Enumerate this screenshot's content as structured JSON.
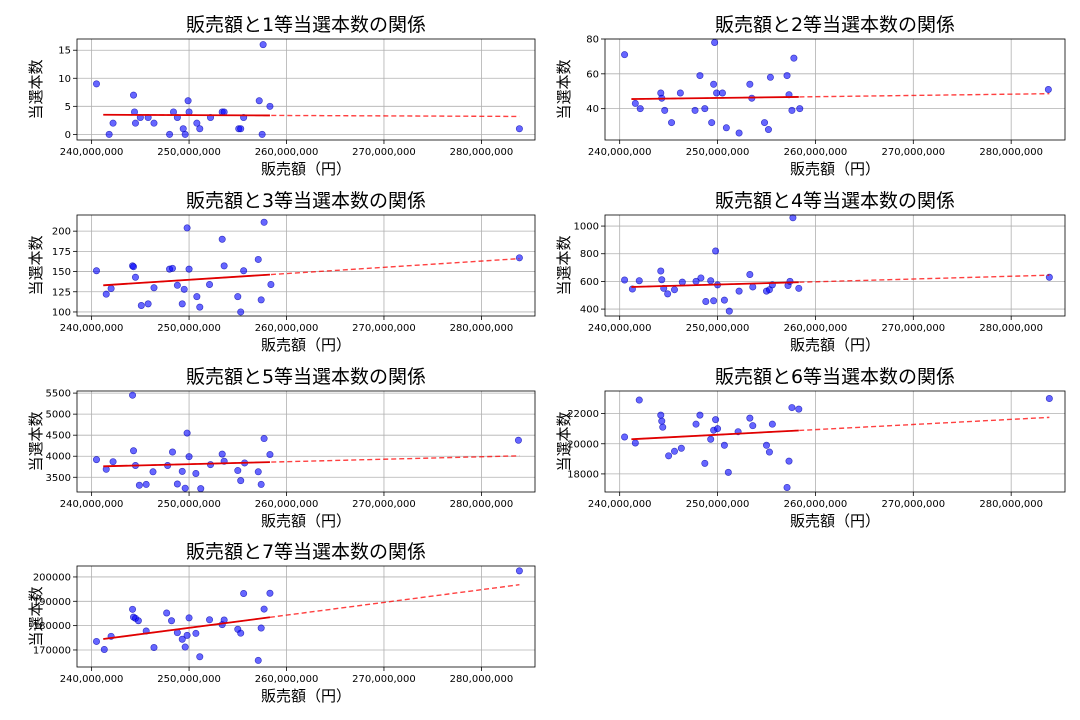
{
  "chart_data": [
    {
      "type": "scatter",
      "title": "販売額と1等当選本数の関係",
      "xlabel": "販売額（円）",
      "ylabel": "当選本数",
      "xlim": [
        238500000,
        285500000
      ],
      "ylim": [
        -1,
        17
      ],
      "xticks": [
        240000000,
        250000000,
        260000000,
        270000000,
        280000000
      ],
      "xtick_labels": [
        "240,000,000",
        "250,000,000",
        "260,000,000",
        "270,000,000",
        "280,000,000"
      ],
      "yticks": [
        0,
        5,
        10,
        15
      ],
      "ytick_labels": [
        "0",
        "5",
        "10",
        "15"
      ],
      "grid": true,
      "x": [
        240500000,
        241800000,
        242200000,
        244300000,
        244400000,
        244500000,
        245000000,
        245800000,
        246400000,
        248000000,
        248400000,
        248800000,
        249400000,
        249600000,
        249900000,
        250000000,
        250800000,
        251100000,
        252200000,
        253400000,
        253600000,
        255100000,
        255300000,
        255600000,
        257200000,
        257500000,
        257600000,
        258300000,
        283900000
      ],
      "y": [
        9,
        0,
        2,
        7,
        4,
        2,
        3,
        3,
        2,
        0,
        4,
        3,
        1,
        0,
        6,
        4,
        2,
        1,
        3,
        4,
        4,
        1,
        1,
        3,
        6,
        0,
        16,
        5,
        1
      ],
      "trend_line": {
        "x": [
          241200000,
          283900000
        ],
        "y": [
          3.5,
          3.2
        ]
      }
    },
    {
      "type": "scatter",
      "title": "販売額と2等当選本数の関係",
      "xlabel": "販売額（円）",
      "ylabel": "当選本数",
      "xlim": [
        238500000,
        285500000
      ],
      "ylim": [
        22,
        80
      ],
      "xticks": [
        240000000,
        250000000,
        260000000,
        270000000,
        280000000
      ],
      "xtick_labels": [
        "240,000,000",
        "250,000,000",
        "260,000,000",
        "270,000,000",
        "280,000,000"
      ],
      "yticks": [
        40,
        60,
        80
      ],
      "ytick_labels": [
        "40",
        "60",
        "80"
      ],
      "grid": true,
      "x": [
        240500000,
        241600000,
        242100000,
        244200000,
        244300000,
        244600000,
        245300000,
        246200000,
        247700000,
        248200000,
        248700000,
        249400000,
        249600000,
        249700000,
        249900000,
        250500000,
        250900000,
        252200000,
        253300000,
        253500000,
        254800000,
        255200000,
        255400000,
        257100000,
        257300000,
        257600000,
        257800000,
        258400000,
        283800000
      ],
      "y": [
        71,
        43,
        40,
        49,
        46,
        39,
        32,
        49,
        39,
        59,
        40,
        32,
        54,
        78,
        49,
        49,
        29,
        26,
        54,
        46,
        32,
        28,
        58,
        59,
        48,
        39,
        69,
        40,
        51
      ],
      "trend_line": {
        "x": [
          241200000,
          283900000
        ],
        "y": [
          45.5,
          48.6
        ]
      }
    },
    {
      "type": "scatter",
      "title": "販売額と3等当選本数の関係",
      "xlabel": "販売額（円）",
      "ylabel": "当選本数",
      "xlim": [
        238500000,
        285500000
      ],
      "ylim": [
        95,
        220
      ],
      "xticks": [
        240000000,
        250000000,
        260000000,
        270000000,
        280000000
      ],
      "xtick_labels": [
        "240,000,000",
        "250,000,000",
        "260,000,000",
        "270,000,000",
        "280,000,000"
      ],
      "yticks": [
        100,
        125,
        150,
        175,
        200
      ],
      "ytick_labels": [
        "100",
        "125",
        "150",
        "175",
        "200"
      ],
      "grid": true,
      "x": [
        240500000,
        241500000,
        242000000,
        244200000,
        244300000,
        244500000,
        245100000,
        245800000,
        246400000,
        248000000,
        248300000,
        248800000,
        249300000,
        249500000,
        249800000,
        250000000,
        250800000,
        251100000,
        252100000,
        253400000,
        253600000,
        255000000,
        255300000,
        255600000,
        257100000,
        257400000,
        257700000,
        258400000,
        283900000
      ],
      "y": [
        151,
        122,
        129,
        157,
        156,
        143,
        108,
        110,
        130,
        153,
        154,
        133,
        110,
        128,
        204,
        153,
        119,
        106,
        134,
        190,
        157,
        119,
        100,
        151,
        165,
        115,
        211,
        134,
        167
      ],
      "trend_line": {
        "x": [
          241200000,
          283900000
        ],
        "y": [
          133,
          166
        ]
      }
    },
    {
      "type": "scatter",
      "title": "販売額と4等当選本数の関係",
      "xlabel": "販売額（円）",
      "ylabel": "当選本数",
      "xlim": [
        238500000,
        285500000
      ],
      "ylim": [
        350,
        1080
      ],
      "xticks": [
        240000000,
        250000000,
        260000000,
        270000000,
        280000000
      ],
      "xtick_labels": [
        "240,000,000",
        "250,000,000",
        "260,000,000",
        "270,000,000",
        "280,000,000"
      ],
      "yticks": [
        400,
        600,
        800,
        1000
      ],
      "ytick_labels": [
        "400",
        "600",
        "800",
        "1000"
      ],
      "grid": true,
      "x": [
        240500000,
        241300000,
        242000000,
        244200000,
        244300000,
        244500000,
        244900000,
        245600000,
        246400000,
        247800000,
        248300000,
        248800000,
        249300000,
        249600000,
        249800000,
        250000000,
        250700000,
        251200000,
        252200000,
        253300000,
        253600000,
        255000000,
        255300000,
        255600000,
        257200000,
        257400000,
        257700000,
        258300000,
        283900000
      ],
      "y": [
        610,
        545,
        605,
        675,
        612,
        550,
        510,
        540,
        595,
        600,
        625,
        455,
        605,
        460,
        820,
        575,
        465,
        385,
        530,
        650,
        560,
        530,
        540,
        575,
        570,
        600,
        1060,
        550,
        630
      ],
      "trend_line": {
        "x": [
          241200000,
          283900000
        ],
        "y": [
          560,
          645
        ]
      }
    },
    {
      "type": "scatter",
      "title": "販売額と5等当選本数の関係",
      "xlabel": "販売額（円）",
      "ylabel": "当選本数",
      "xlim": [
        238500000,
        285500000
      ],
      "ylim": [
        3150,
        5550
      ],
      "xticks": [
        240000000,
        250000000,
        260000000,
        270000000,
        280000000
      ],
      "xtick_labels": [
        "240,000,000",
        "250,000,000",
        "260,000,000",
        "270,000,000",
        "280,000,000"
      ],
      "yticks": [
        3500,
        4000,
        4500,
        5000,
        5500
      ],
      "ytick_labels": [
        "3500",
        "4000",
        "4500",
        "5000",
        "5500"
      ],
      "grid": true,
      "x": [
        240500000,
        241500000,
        242200000,
        244200000,
        244300000,
        244500000,
        244900000,
        245600000,
        246300000,
        247800000,
        248300000,
        248800000,
        249300000,
        249600000,
        249800000,
        250000000,
        250700000,
        251200000,
        252200000,
        253400000,
        253600000,
        255000000,
        255300000,
        255700000,
        257100000,
        257400000,
        257700000,
        258300000,
        283800000
      ],
      "y": [
        3920,
        3690,
        3870,
        5450,
        4130,
        3780,
        3310,
        3330,
        3630,
        3780,
        4100,
        3340,
        3640,
        3240,
        4550,
        3990,
        3590,
        3230,
        3800,
        4050,
        3880,
        3660,
        3420,
        3840,
        3630,
        3330,
        4420,
        4040,
        4380
      ],
      "trend_line": {
        "x": [
          241200000,
          283900000
        ],
        "y": [
          3760,
          4010
        ]
      }
    },
    {
      "type": "scatter",
      "title": "販売額と6等当選本数の関係",
      "xlabel": "販売額（円）",
      "ylabel": "当選本数",
      "xlim": [
        238500000,
        285500000
      ],
      "ylim": [
        16800,
        23500
      ],
      "xticks": [
        240000000,
        250000000,
        260000000,
        270000000,
        280000000
      ],
      "xtick_labels": [
        "240,000,000",
        "250,000,000",
        "260,000,000",
        "270,000,000",
        "280,000,000"
      ],
      "yticks": [
        18000,
        20000,
        22000
      ],
      "ytick_labels": [
        "18000",
        "20000",
        "22000"
      ],
      "grid": true,
      "x": [
        240500000,
        241600000,
        242000000,
        244200000,
        244300000,
        244400000,
        245000000,
        245600000,
        246300000,
        247800000,
        248200000,
        248700000,
        249300000,
        249600000,
        249800000,
        250000000,
        250700000,
        251100000,
        252100000,
        253300000,
        253600000,
        255000000,
        255300000,
        255600000,
        257100000,
        257300000,
        257600000,
        258300000,
        283900000
      ],
      "y": [
        20450,
        20050,
        22900,
        21900,
        21500,
        21100,
        19200,
        19500,
        19700,
        21300,
        21900,
        18700,
        20300,
        20900,
        21600,
        21000,
        19900,
        18100,
        20800,
        21700,
        21200,
        19900,
        19450,
        21300,
        17100,
        18850,
        22400,
        22300,
        23000
      ],
      "trend_line": {
        "x": [
          241200000,
          283900000
        ],
        "y": [
          20300,
          21750
        ]
      }
    },
    {
      "type": "scatter",
      "title": "販売額と7等当選本数の関係",
      "xlabel": "販売額（円）",
      "ylabel": "当選本数",
      "xlim": [
        238500000,
        285500000
      ],
      "ylim": [
        163000,
        204500
      ],
      "xticks": [
        240000000,
        250000000,
        260000000,
        270000000,
        280000000
      ],
      "xtick_labels": [
        "240,000,000",
        "250,000,000",
        "260,000,000",
        "270,000,000",
        "280,000,000"
      ],
      "yticks": [
        170000,
        180000,
        190000,
        200000
      ],
      "ytick_labels": [
        "170000",
        "180000",
        "190000",
        "200000"
      ],
      "grid": true,
      "x": [
        240500000,
        241300000,
        242000000,
        244200000,
        244300000,
        244500000,
        244800000,
        245600000,
        246400000,
        247700000,
        248200000,
        248800000,
        249300000,
        249600000,
        249800000,
        250000000,
        250700000,
        251100000,
        252100000,
        253400000,
        253600000,
        255000000,
        255300000,
        255600000,
        257100000,
        257400000,
        257700000,
        258300000,
        283900000
      ],
      "y": [
        173500,
        170200,
        175600,
        186700,
        183500,
        183000,
        182000,
        177800,
        171000,
        185200,
        182000,
        177100,
        174400,
        171200,
        176000,
        183200,
        176800,
        167200,
        182400,
        180400,
        182300,
        178500,
        176900,
        193200,
        165700,
        179000,
        186800,
        193300,
        202500
      ],
      "trend_line": {
        "x": [
          241200000,
          283900000
        ],
        "y": [
          174500,
          196800
        ]
      }
    }
  ]
}
